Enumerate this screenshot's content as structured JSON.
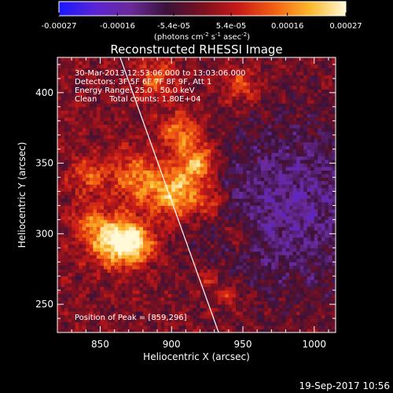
{
  "chart_data": {
    "type": "heatmap",
    "title": "Reconstructed RHESSI Image",
    "xlabel": "Heliocentric X (arcsec)",
    "ylabel": "Heliocentric Y (arcsec)",
    "xlim": [
      820,
      1015
    ],
    "ylim": [
      230,
      425
    ],
    "xticks": [
      850,
      900,
      950,
      1000
    ],
    "yticks": [
      250,
      300,
      350,
      400
    ],
    "colorbar": {
      "ticklabels": [
        "-0.00027",
        "-0.00016",
        "-5.4e-05",
        "5.4e-05",
        "0.00016",
        "0.00027"
      ],
      "ticks": [
        -0.00027,
        -0.00016,
        -5.4e-05,
        5.4e-05,
        0.00016,
        0.00027
      ],
      "range": [
        -0.00027,
        0.00027
      ],
      "unit_prefix": "(photons cm",
      "unit_exp1": "-2",
      "unit_mid": " s",
      "unit_exp2": "-1",
      "unit_mid2": " asec",
      "unit_exp3": "-2",
      "unit_suffix": ")",
      "colors": [
        "#1818ff",
        "#5a24d6",
        "#6a2a9a",
        "#3a123a",
        "#7a1020",
        "#c81a18",
        "#f25f12",
        "#fbb82a",
        "#fff9d8"
      ]
    },
    "annotations": {
      "line1": "30-Mar-2013 12:53:06.000 to 13:03:06.000",
      "line2": "Detectors: 3F 5F 6F 7F 8F 9F, Att 1",
      "line3": "Energy Range: 25.0 - 50.0 keV",
      "line4": "Clean     Total counts: 1.80E+04",
      "peak": "Position of Peak = [859,296]"
    },
    "peak_position": [
      859,
      296
    ],
    "limb_line": [
      [
        864,
        425
      ],
      [
        933,
        230
      ]
    ],
    "sources": [
      {
        "x": 859,
        "y": 296,
        "sigma": 12,
        "amp": 0.00026
      },
      {
        "x": 875,
        "y": 293,
        "sigma": 10,
        "amp": 0.00019
      },
      {
        "x": 903,
        "y": 328,
        "sigma": 12,
        "amp": 0.00022
      },
      {
        "x": 918,
        "y": 350,
        "sigma": 10,
        "amp": 0.0002
      },
      {
        "x": 906,
        "y": 372,
        "sigma": 10,
        "amp": 0.00016
      },
      {
        "x": 876,
        "y": 340,
        "sigma": 13,
        "amp": 0.00016
      },
      {
        "x": 842,
        "y": 342,
        "sigma": 9,
        "amp": 0.00012
      },
      {
        "x": 840,
        "y": 310,
        "sigma": 8,
        "amp": 0.0001
      },
      {
        "x": 890,
        "y": 410,
        "sigma": 10,
        "amp": 0.00013
      },
      {
        "x": 928,
        "y": 322,
        "sigma": 8,
        "amp": 0.00012
      },
      {
        "x": 946,
        "y": 300,
        "sigma": 7,
        "amp": 0.0001
      },
      {
        "x": 941,
        "y": 256,
        "sigma": 6,
        "amp": 9e-05
      },
      {
        "x": 948,
        "y": 405,
        "sigma": 9,
        "amp": 0.00012
      },
      {
        "x": 925,
        "y": 268,
        "sigma": 6,
        "amp": 8e-05
      }
    ],
    "negative_region": {
      "x": 985,
      "y": 320,
      "sigma": 45,
      "amp": -0.00013
    }
  },
  "footer": {
    "timestamp": "19-Sep-2017 10:56"
  }
}
